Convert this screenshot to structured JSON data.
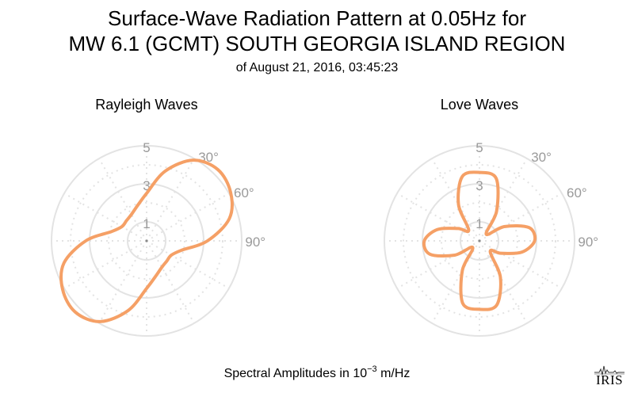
{
  "title_line1": "Surface-Wave Radiation Pattern at 0.05Hz for",
  "title_line2": "MW 6.1 (GCMT) SOUTH GEORGIA ISLAND REGION",
  "subtitle": "of August 21, 2016, 03:45:23",
  "caption_prefix": "Spectral Amplitudes in 10",
  "caption_exponent": "−3",
  "caption_suffix": " m/Hz",
  "logo_text": "IRIS",
  "colors": {
    "pattern": "#f5a066",
    "grid": "#e3e3e3",
    "tick_label": "#9a9a9a"
  },
  "chart_data": [
    {
      "type": "polar",
      "title": "Rayleigh Waves",
      "r_ticks": [
        1,
        3,
        5
      ],
      "r_max": 5,
      "theta_ticks": [
        30,
        60,
        90
      ],
      "theta_tick_labels": [
        "30°",
        "60°",
        "90°"
      ],
      "theta_deg": [
        0,
        15,
        30,
        45,
        60,
        75,
        90,
        105,
        120,
        135,
        150,
        165,
        180,
        195,
        210,
        225,
        240,
        255,
        270,
        285,
        300,
        315,
        330,
        345,
        360
      ],
      "r": [
        2.5,
        3.8,
        4.9,
        5.3,
        5.1,
        4.5,
        3.2,
        1.9,
        1.5,
        1.5,
        1.6,
        1.9,
        2.5,
        3.8,
        4.9,
        5.3,
        5.1,
        4.5,
        3.2,
        1.9,
        1.5,
        1.5,
        1.6,
        1.9,
        2.5
      ]
    },
    {
      "type": "polar",
      "title": "Love Waves",
      "r_ticks": [
        1,
        3,
        5
      ],
      "r_max": 5,
      "theta_ticks": [
        30,
        60,
        90
      ],
      "theta_tick_labels": [
        "30°",
        "60°",
        "90°"
      ],
      "theta_deg": [
        0,
        15,
        30,
        45,
        60,
        75,
        90,
        105,
        120,
        135,
        150,
        165,
        180,
        195,
        210,
        225,
        240,
        255,
        270,
        285,
        300,
        315,
        330,
        345,
        360
      ],
      "r": [
        3.6,
        3.4,
        1.8,
        0.5,
        1.5,
        2.7,
        2.9,
        2.3,
        1.3,
        0.8,
        2.2,
        3.5,
        3.6,
        3.4,
        1.8,
        0.5,
        1.5,
        2.7,
        2.9,
        2.3,
        1.3,
        0.8,
        2.2,
        3.5,
        3.6
      ]
    }
  ]
}
